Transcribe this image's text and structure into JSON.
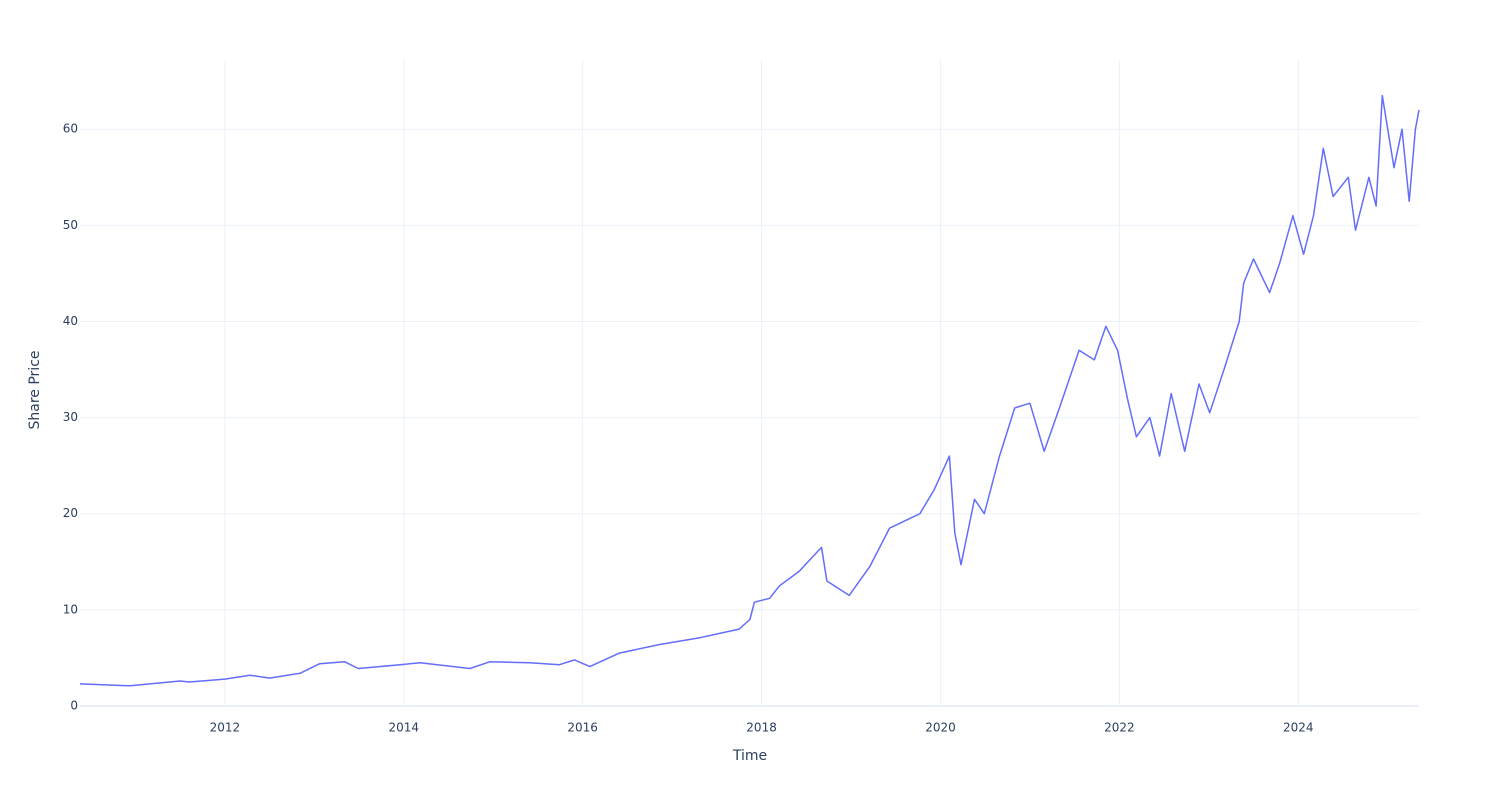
{
  "chart_data": {
    "type": "line",
    "x_label": "Time",
    "y_label": "Share Price",
    "series": [
      {
        "color": "#636efa",
        "x": [
          2010.38,
          2010.94,
          2011.5,
          2011.6,
          2012.0,
          2012.28,
          2012.5,
          2012.84,
          2013.06,
          2013.34,
          2013.49,
          2013.96,
          2014.18,
          2014.74,
          2014.96,
          2015.41,
          2015.74,
          2015.91,
          2016.08,
          2016.41,
          2016.86,
          2017.31,
          2017.75,
          2017.87,
          2017.92,
          2018.09,
          2018.2,
          2018.42,
          2018.67,
          2018.73,
          2018.98,
          2019.21,
          2019.43,
          2019.77,
          2019.93,
          2020.1,
          2020.16,
          2020.23,
          2020.38,
          2020.49,
          2020.66,
          2020.83,
          2021.0,
          2021.16,
          2021.33,
          2021.55,
          2021.72,
          2021.85,
          2021.98,
          2022.09,
          2022.19,
          2022.34,
          2022.45,
          2022.58,
          2022.73,
          2022.89,
          2023.01,
          2023.17,
          2023.34,
          2023.39,
          2023.5,
          2023.68,
          2023.79,
          2023.94,
          2024.06,
          2024.17,
          2024.28,
          2024.39,
          2024.56,
          2024.64,
          2024.79,
          2024.87,
          2024.94,
          2025.07,
          2025.16,
          2025.24,
          2025.31,
          2025.35
        ],
        "values": [
          2.3,
          2.1,
          2.6,
          2.5,
          2.8,
          3.2,
          2.9,
          3.4,
          4.4,
          4.6,
          3.9,
          4.3,
          4.5,
          3.9,
          4.6,
          4.5,
          4.3,
          4.8,
          4.1,
          5.5,
          6.4,
          7.1,
          8.0,
          9.0,
          10.8,
          11.2,
          12.5,
          14.0,
          16.5,
          13.0,
          11.5,
          14.5,
          18.5,
          20.0,
          22.5,
          26.0,
          18.0,
          14.7,
          21.5,
          20.0,
          26.0,
          31.0,
          31.5,
          26.5,
          31.0,
          37.0,
          36.0,
          39.5,
          37.0,
          32.0,
          28.0,
          30.0,
          26.0,
          32.5,
          26.5,
          33.5,
          30.5,
          35.0,
          40.0,
          44.0,
          46.5,
          43.0,
          46.0,
          51.0,
          47.0,
          51.0,
          58.0,
          53.0,
          55.0,
          49.5,
          55.0,
          52.0,
          63.5,
          56.0,
          60.0,
          52.5,
          60.0,
          62.0
        ]
      }
    ],
    "xlim": [
      2010.38,
      2025.35
    ],
    "xticks": [
      2012,
      2014,
      2016,
      2018,
      2020,
      2022,
      2024
    ],
    "ylim": [
      0,
      67.2
    ],
    "yticks": [
      0,
      10,
      20,
      30,
      40,
      50,
      60
    ],
    "grid": true
  }
}
